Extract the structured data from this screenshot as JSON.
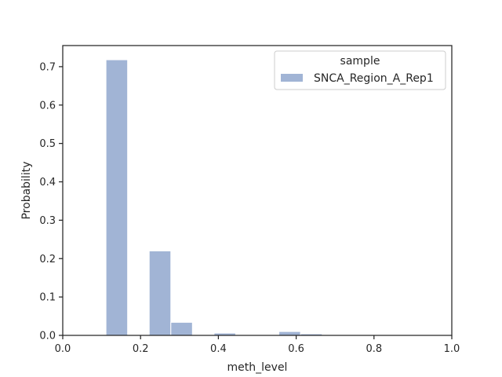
{
  "chart_data": {
    "type": "bar",
    "title": "",
    "xlabel": "meth_level",
    "ylabel": "Probability",
    "xlim": [
      0,
      1
    ],
    "ylim": [
      0,
      0.755
    ],
    "xticks": [
      0.0,
      0.2,
      0.4,
      0.6,
      0.8,
      1.0
    ],
    "xtick_labels": [
      "0.0",
      "0.2",
      "0.4",
      "0.6",
      "0.8",
      "1.0"
    ],
    "yticks": [
      0.0,
      0.1,
      0.2,
      0.3,
      0.4,
      0.5,
      0.6,
      0.7
    ],
    "ytick_labels": [
      "0.0",
      "0.1",
      "0.2",
      "0.3",
      "0.4",
      "0.5",
      "0.6",
      "0.7"
    ],
    "grid": false,
    "legend": {
      "title": "sample",
      "placement": "top-right",
      "entries": [
        "SNCA_Region_A_Rep1"
      ]
    },
    "series": [
      {
        "name": "SNCA_Region_A_Rep1",
        "color": "#a1b4d5",
        "bins": [
          {
            "start": 0.1111,
            "end": 0.1667,
            "value": 0.718
          },
          {
            "start": 0.2222,
            "end": 0.2778,
            "value": 0.22
          },
          {
            "start": 0.2778,
            "end": 0.3333,
            "value": 0.034
          },
          {
            "start": 0.3889,
            "end": 0.4444,
            "value": 0.006
          },
          {
            "start": 0.5556,
            "end": 0.6111,
            "value": 0.01
          },
          {
            "start": 0.6111,
            "end": 0.6667,
            "value": 0.004
          }
        ]
      }
    ]
  }
}
